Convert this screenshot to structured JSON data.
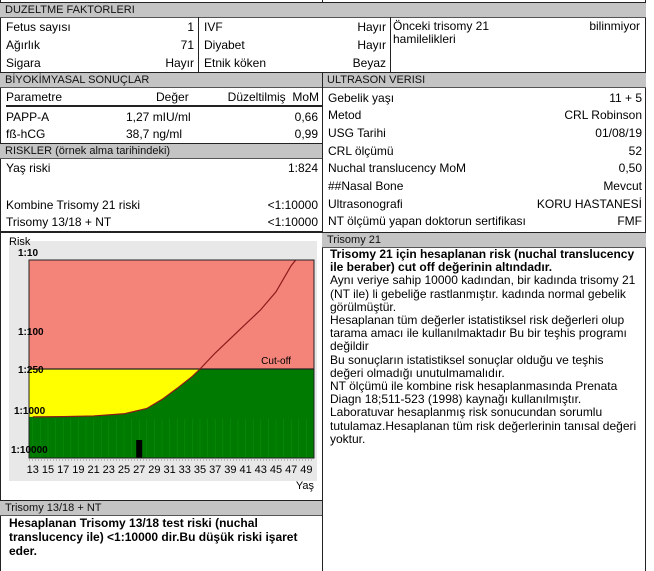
{
  "duzeltme": {
    "title": "DUZELTME FAKTORLERI",
    "col1": [
      {
        "label": "Fetus sayısı",
        "value": "1"
      },
      {
        "label": "Ağırlık",
        "value": "71"
      },
      {
        "label": "Sigara",
        "value": "Hayır"
      }
    ],
    "col2": [
      {
        "label": "IVF",
        "value": "Hayır"
      },
      {
        "label": "Diyabet",
        "value": "Hayır"
      },
      {
        "label": "Etnik köken",
        "value": "Beyaz"
      }
    ],
    "col3": {
      "label": "Önceki trisomy 21 hamilelikleri",
      "value": "bilinmiyor"
    }
  },
  "biyokimya": {
    "title": "BİYOKİMYASAL SONUÇLAR",
    "headers": [
      "Parametre",
      "Değer",
      "Düzeltilmiş  MoM"
    ],
    "rows": [
      [
        "PAPP-A",
        "1,27 mIU/ml",
        "0,66"
      ],
      [
        "fß-hCG",
        "38,7 ng/ml",
        "0,99"
      ]
    ]
  },
  "riskler": {
    "title": "RISKLER (örnek alma tarihindeki)",
    "rows": [
      {
        "label": "Yaş riski",
        "value": "1:824"
      },
      {
        "label": "Kombine Trisomy 21 riski",
        "value": "<1:10000"
      },
      {
        "label": "Trisomy 13/18 + NT",
        "value": "<1:10000"
      }
    ]
  },
  "ultrason": {
    "title": "ULTRASON VERISI",
    "rows": [
      {
        "label": "Gebelik yaşı",
        "value": "11 +  5"
      },
      {
        "label": "Metod",
        "value": "CRL Robinson"
      },
      {
        "label": "USG Tarihi",
        "value": "01/08/19"
      },
      {
        "label": "CRL ölçümü",
        "value": "52"
      },
      {
        "label": "Nuchal translucency MoM",
        "value": "0,50"
      },
      {
        "label": "##Nasal Bone",
        "value": "Mevcut"
      },
      {
        "label": "Ultrasonografi",
        "value": "KORU HASTANESİ"
      },
      {
        "label": "NT ölçümü yapan doktorun sertifikası",
        "value": "FMF"
      }
    ]
  },
  "chart_data": {
    "type": "area",
    "ylabel": "Risk",
    "xlabel": "Yaş",
    "y_scale": "log (risk 1:N)",
    "y_ticks": [
      "1:10",
      "1:100",
      "1:250",
      "1:1000",
      "1:10000"
    ],
    "y_tick_values": [
      10,
      100,
      250,
      1000,
      10000
    ],
    "x_ticks": [
      13,
      15,
      17,
      19,
      21,
      23,
      25,
      27,
      29,
      31,
      33,
      35,
      37,
      39,
      41,
      43,
      45,
      47,
      49
    ],
    "xlim": [
      12.5,
      50
    ],
    "cutoff": {
      "label": "Cut-off",
      "value": 250
    },
    "age_risk_curve": {
      "x": [
        13,
        17,
        21,
        25,
        28,
        30,
        32,
        34,
        35,
        37,
        39,
        41,
        43,
        45,
        47,
        47.6
      ],
      "y": [
        1500,
        1480,
        1420,
        1250,
        950,
        700,
        480,
        320,
        250,
        170,
        120,
        80,
        50,
        28,
        12,
        10
      ]
    },
    "patient_marker": {
      "age": 27
    },
    "colors": {
      "high_risk": "#f4847a",
      "between": "#ffff00",
      "low_risk": "#007a00",
      "curve": "#8b1a1a",
      "marker": "#000000"
    }
  },
  "trisomy21": {
    "title": "Trisomy 21",
    "bold": "Trisomy 21 için hesaplanan risk (nuchal translucency ile beraber) cut off değerinin altındadır.",
    "lines": [
      "Aynı veriye sahip 10000 kadından, bir kadında trisomy 21 (NT ile) li gebeliğe  rastlanmıştır.    kadında  normal gebelik görülmüştür.",
      "Hesaplanan tüm değerler istatistiksel risk değerleri olup tarama amacı ile kullanılmaktadır Bu bir teşhis programı değildir",
      "Bu sonuçların istatistiksel sonuçlar olduğu ve teşhis değeri olmadığı unutulmamalıdır.",
      "NT ölçümü ile  kombine risk hesaplanmasında Prenata Diagn 18;511-523 (1998) kaynağı kullanılmıştır.",
      "Laboratuvar hesaplanmış risk sonucundan sorumlu tutulamaz.Hesaplanan tüm risk değerlerinin  tanısal değeri yoktur."
    ]
  },
  "trisomy1318": {
    "title": "Trisomy 13/18 + NT",
    "text": "Hesaplanan Trisomy 13/18 test riski (nuchal translucency ile)  <1:10000 dir.Bu düşük riski işaret eder."
  }
}
